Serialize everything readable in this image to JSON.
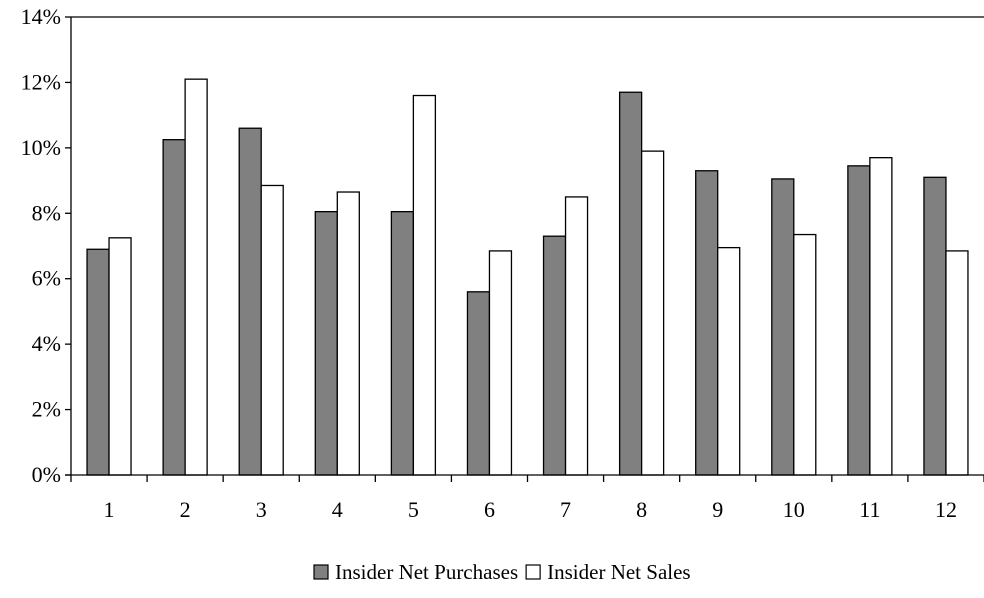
{
  "chart_data": {
    "type": "bar",
    "title": "",
    "xlabel": "",
    "ylabel": "",
    "categories": [
      "1",
      "2",
      "3",
      "4",
      "5",
      "6",
      "7",
      "8",
      "9",
      "10",
      "11",
      "12"
    ],
    "series": [
      {
        "name": "Insider Net Purchases",
        "color": "#808080",
        "values": [
          6.9,
          10.25,
          10.6,
          8.05,
          8.05,
          5.6,
          7.3,
          11.7,
          9.3,
          9.05,
          9.45,
          9.1
        ]
      },
      {
        "name": "Insider Net Sales",
        "color": "#ffffff",
        "values": [
          7.25,
          12.1,
          8.85,
          8.65,
          11.6,
          6.85,
          8.5,
          9.9,
          6.95,
          7.35,
          9.7,
          6.85
        ]
      }
    ],
    "ylim": [
      0,
      14
    ],
    "y_ticks": [
      0,
      2,
      4,
      6,
      8,
      10,
      12,
      14
    ],
    "y_tick_labels": [
      "0%",
      "2%",
      "4%",
      "6%",
      "8%",
      "10%",
      "12%",
      "14%"
    ],
    "grid": false,
    "legend_position": "bottom"
  }
}
